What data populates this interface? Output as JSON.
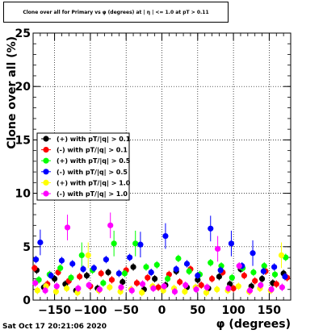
{
  "title": "Clone  over all for Primary vs φ (degrees) at | η | <= 1.0 at pT > 0.11",
  "footer_timestamp": "Sat Oct 17 20:21:06 2020",
  "chart_data": {
    "type": "scatter",
    "title": "Clone  over all for Primary vs φ (degrees) at | η | <= 1.0 at pT > 0.11",
    "xlabel": "φ (degrees)",
    "ylabel": "Clone  over all (%)",
    "xlim": [
      -180,
      180
    ],
    "ylim": [
      0,
      25
    ],
    "x_ticks": [
      -150,
      -100,
      -50,
      0,
      50,
      100,
      150
    ],
    "x_tick_labels": [
      "−150",
      "−100",
      "−50",
      "0",
      "50",
      "100",
      "150"
    ],
    "y_ticks": [
      0,
      5,
      10,
      15,
      20,
      25
    ],
    "y_tick_labels": [
      "0",
      "5",
      "10",
      "15",
      "20",
      "25"
    ],
    "grid": true,
    "legend_position": "left",
    "series": [
      {
        "name": "(+) with pT/|q| > 0.1",
        "color": "#000000",
        "x": [
          -175,
          -165,
          -150,
          -135,
          -120,
          -105,
          -90,
          -75,
          -55,
          -40,
          -25,
          -10,
          5,
          20,
          35,
          50,
          65,
          80,
          95,
          110,
          125,
          140,
          155,
          170
        ],
        "y": [
          2.8,
          1.2,
          2.0,
          1.5,
          0.9,
          2.3,
          1.1,
          2.6,
          1.7,
          3.1,
          1.0,
          2.0,
          1.4,
          2.7,
          1.2,
          1.9,
          1.1,
          2.2,
          1.5,
          2.9,
          1.3,
          2.0,
          1.6,
          2.5
        ]
      },
      {
        "name": "(-) with pT/|q| > 0.1",
        "color": "#ff0000",
        "x": [
          -178,
          -160,
          -145,
          -130,
          -115,
          -100,
          -85,
          -70,
          -50,
          -35,
          -20,
          -5,
          10,
          25,
          40,
          55,
          70,
          85,
          100,
          115,
          130,
          145,
          160,
          175
        ],
        "y": [
          3.0,
          1.5,
          2.6,
          1.8,
          2.2,
          1.3,
          2.5,
          1.9,
          2.8,
          1.6,
          2.1,
          1.2,
          2.4,
          1.7,
          2.9,
          1.4,
          2.0,
          2.6,
          1.1,
          2.3,
          1.8,
          2.7,
          1.5,
          2.1
        ]
      },
      {
        "name": "(+) with pT/|q| > 0.5",
        "color": "#00ff00",
        "x": [
          -172,
          -157,
          -142,
          -127,
          -112,
          -97,
          -82,
          -67,
          -52,
          -37,
          -22,
          -7,
          8,
          23,
          38,
          53,
          68,
          83,
          98,
          113,
          128,
          143,
          158,
          173
        ],
        "y": [
          1.9,
          2.4,
          3.0,
          2.1,
          4.2,
          2.8,
          1.6,
          5.3,
          2.5,
          5.3,
          3.1,
          3.3,
          2.0,
          3.9,
          2.7,
          2.4,
          3.5,
          3.2,
          2.1,
          3.0,
          2.6,
          3.2,
          2.4,
          4.0
        ]
      },
      {
        "name": "(-) with pT/|q| > 0.5",
        "color": "#0000ff",
        "x": [
          -176,
          -170,
          -155,
          -140,
          -125,
          -110,
          -95,
          -78,
          -60,
          -45,
          -30,
          -15,
          5,
          20,
          35,
          50,
          68,
          82,
          97,
          112,
          127,
          142,
          157,
          172
        ],
        "y": [
          3.8,
          5.4,
          2.3,
          3.7,
          3.4,
          2.9,
          3.0,
          3.8,
          2.5,
          4.0,
          5.2,
          2.6,
          6.0,
          2.9,
          3.4,
          2.3,
          6.7,
          2.8,
          5.3,
          3.2,
          4.4,
          2.7,
          3.1,
          2.2
        ]
      },
      {
        "name": "(+) with pT/|q| > 1.0",
        "color": "#ffff00",
        "x": [
          -174,
          -162,
          -148,
          -133,
          -118,
          -103,
          -88,
          -73,
          -58,
          -43,
          -28,
          -13,
          2,
          17,
          32,
          47,
          62,
          77,
          92,
          107,
          122,
          137,
          152,
          167
        ],
        "y": [
          0.9,
          1.3,
          0.8,
          1.1,
          0.7,
          4.2,
          0.9,
          1.2,
          0.8,
          1.0,
          0.7,
          1.3,
          0.9,
          1.1,
          0.8,
          1.2,
          0.7,
          1.0,
          0.9,
          1.3,
          0.8,
          1.1,
          0.9,
          4.2
        ]
      },
      {
        "name": "(-) with pT/|q| > 1.0",
        "color": "#ff00ff",
        "x": [
          -177,
          -163,
          -147,
          -132,
          -117,
          -102,
          -87,
          -72,
          -57,
          -42,
          -27,
          -12,
          3,
          18,
          33,
          48,
          63,
          78,
          93,
          108,
          123,
          138,
          153,
          168
        ],
        "y": [
          1.6,
          0.9,
          1.3,
          6.8,
          1.1,
          1.4,
          1.0,
          7.0,
          1.2,
          0.9,
          1.5,
          1.1,
          1.3,
          0.8,
          1.4,
          1.0,
          1.2,
          4.8,
          1.1,
          3.2,
          0.9,
          1.4,
          1.0,
          1.2
        ]
      }
    ]
  }
}
